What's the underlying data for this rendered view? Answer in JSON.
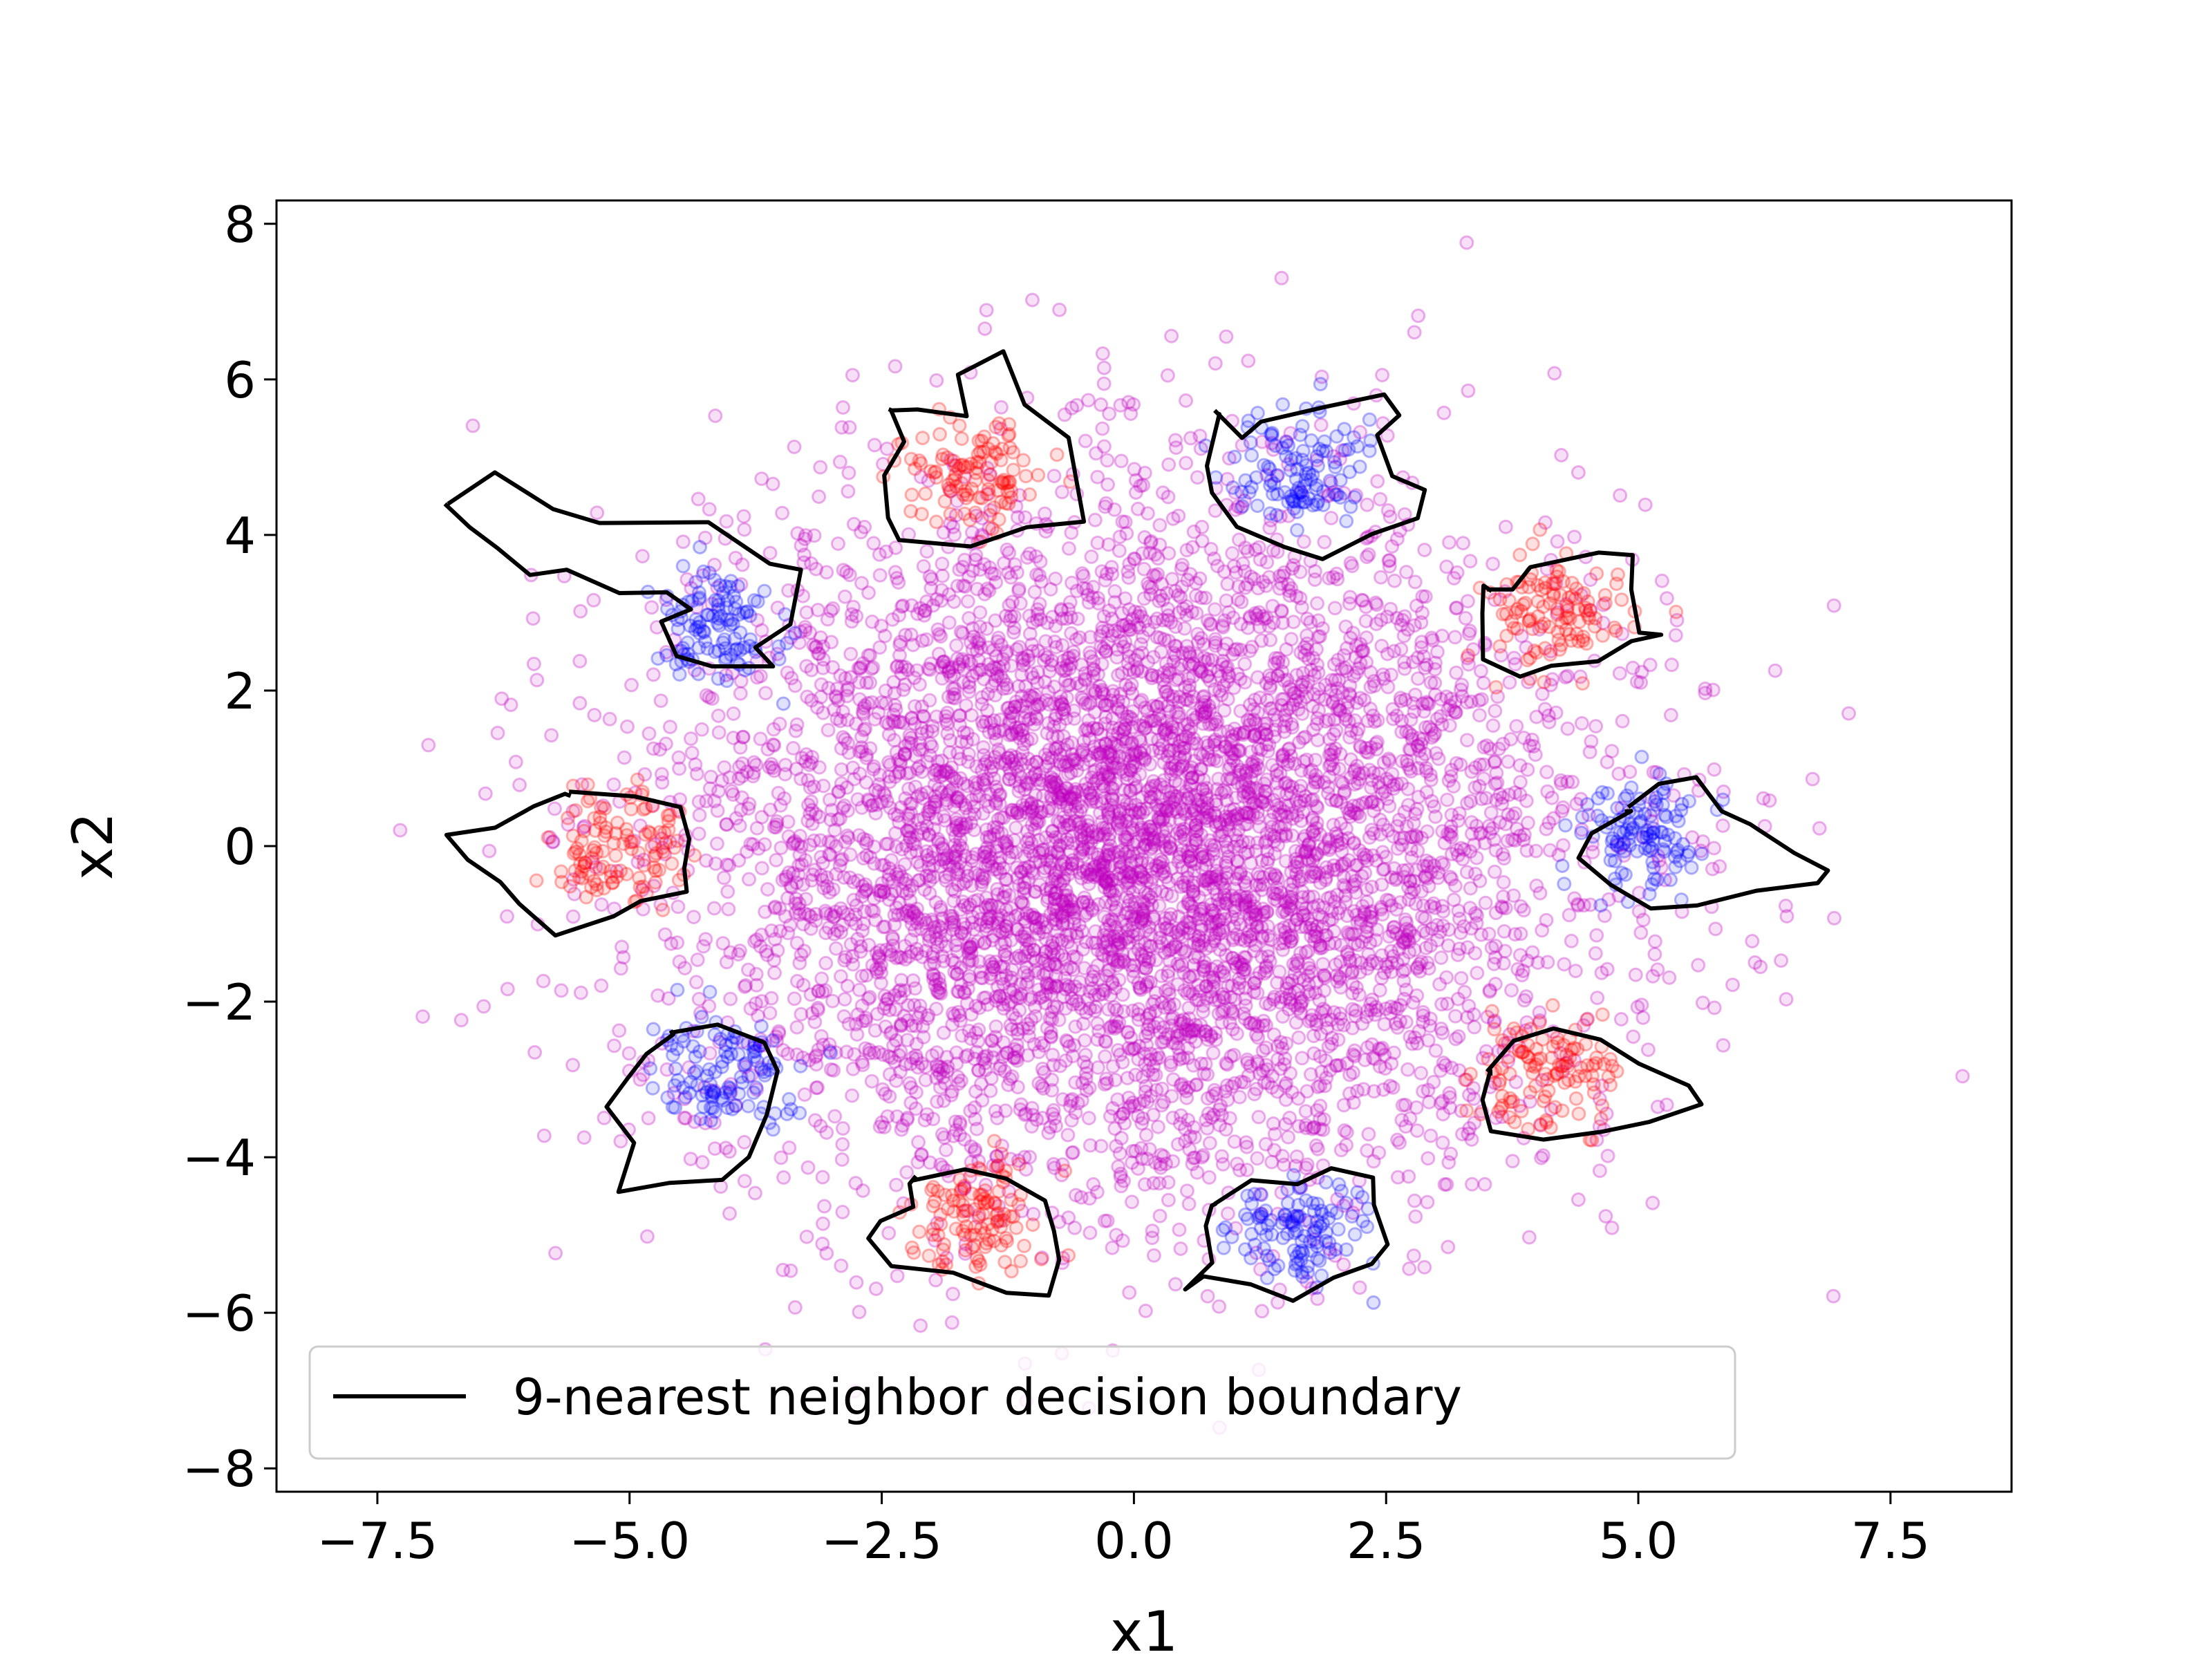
{
  "chart_data": {
    "type": "scatter",
    "title": "",
    "xlabel": "x1",
    "ylabel": "x2",
    "xlim": [
      -8.5,
      8.7
    ],
    "ylim": [
      -8.3,
      8.3
    ],
    "xticks": [
      -7.5,
      -5.0,
      -2.5,
      0.0,
      2.5,
      5.0,
      7.5
    ],
    "xtick_labels": [
      "−7.5",
      "−5.0",
      "−2.5",
      "0.0",
      "2.5",
      "5.0",
      "7.5"
    ],
    "yticks": [
      8,
      6,
      4,
      2,
      0,
      -2,
      -4,
      -6,
      -8
    ],
    "ytick_labels": [
      "8",
      "6",
      "4",
      "2",
      "0",
      "−2",
      "−4",
      "−6",
      "−8"
    ],
    "grid": false,
    "legend": {
      "placement": "lower-left",
      "entries": [
        {
          "label": "9-nearest neighbor decision boundary",
          "style": "line",
          "color": "#000000"
        }
      ]
    },
    "background_cloud": {
      "color": "#c000c0",
      "distribution": "isotropic gaussian",
      "center": [
        0,
        0
      ],
      "std": 2.2,
      "approx_points": 6000
    },
    "clusters": [
      {
        "label": "blue",
        "color": "#0000ff",
        "center": [
          -4.1,
          2.8
        ],
        "std": 0.35
      },
      {
        "label": "red",
        "color": "#ff0000",
        "center": [
          -1.6,
          4.8
        ],
        "std": 0.35
      },
      {
        "label": "blue",
        "color": "#0000ff",
        "center": [
          1.6,
          4.8
        ],
        "std": 0.35
      },
      {
        "label": "red",
        "color": "#ff0000",
        "center": [
          4.1,
          3.0
        ],
        "std": 0.35
      },
      {
        "label": "blue",
        "color": "#0000ff",
        "center": [
          5.1,
          0.1
        ],
        "std": 0.35
      },
      {
        "label": "red",
        "color": "#ff0000",
        "center": [
          4.1,
          -2.9
        ],
        "std": 0.35
      },
      {
        "label": "blue",
        "color": "#0000ff",
        "center": [
          1.6,
          -4.9
        ],
        "std": 0.35
      },
      {
        "label": "red",
        "color": "#ff0000",
        "center": [
          -1.6,
          -4.7
        ],
        "std": 0.35
      },
      {
        "label": "blue",
        "color": "#0000ff",
        "center": [
          -4.1,
          -2.9
        ],
        "std": 0.35
      },
      {
        "label": "red",
        "color": "#ff0000",
        "center": [
          -5.1,
          0.0
        ],
        "std": 0.35
      }
    ],
    "decision_boundaries": [
      {
        "cluster": 0,
        "outline": [
          [
            -6.8,
            4.4
          ],
          [
            -6.3,
            4.8
          ],
          [
            -5.8,
            4.3
          ],
          [
            -5.3,
            4.2
          ],
          [
            -4.2,
            4.2
          ],
          [
            -3.6,
            3.6
          ],
          [
            -3.3,
            3.5
          ],
          [
            -3.4,
            2.9
          ],
          [
            -3.8,
            2.6
          ],
          [
            -3.6,
            2.3
          ],
          [
            -4.2,
            2.3
          ],
          [
            -4.5,
            2.4
          ],
          [
            -4.7,
            2.9
          ],
          [
            -4.4,
            3.1
          ],
          [
            -4.6,
            3.3
          ],
          [
            -5.1,
            3.2
          ],
          [
            -5.6,
            3.5
          ],
          [
            -6.0,
            3.5
          ],
          [
            -6.3,
            3.8
          ],
          [
            -6.6,
            4.1
          ]
        ]
      },
      {
        "cluster": 1,
        "outline": [
          [
            -2.4,
            5.6
          ],
          [
            -2.1,
            5.6
          ],
          [
            -1.7,
            5.5
          ],
          [
            -1.7,
            6.1
          ],
          [
            -1.3,
            6.3
          ],
          [
            -1.1,
            5.7
          ],
          [
            -0.6,
            5.2
          ],
          [
            -0.5,
            4.2
          ],
          [
            -1.1,
            4.1
          ],
          [
            -1.6,
            3.9
          ],
          [
            -2.3,
            3.9
          ],
          [
            -2.4,
            4.2
          ],
          [
            -2.5,
            4.8
          ],
          [
            -2.3,
            5.2
          ],
          [
            -2.4,
            5.6
          ]
        ]
      },
      {
        "cluster": 2,
        "outline": [
          [
            0.8,
            5.6
          ],
          [
            1.1,
            5.2
          ],
          [
            1.3,
            5.4
          ],
          [
            1.9,
            5.7
          ],
          [
            2.5,
            5.8
          ],
          [
            2.6,
            5.5
          ],
          [
            2.4,
            5.3
          ],
          [
            2.6,
            4.8
          ],
          [
            2.9,
            4.6
          ],
          [
            2.8,
            4.2
          ],
          [
            2.4,
            4.0
          ],
          [
            1.9,
            3.7
          ],
          [
            1.5,
            3.9
          ],
          [
            1.0,
            4.1
          ],
          [
            0.8,
            4.5
          ],
          [
            0.7,
            4.9
          ],
          [
            0.8,
            5.6
          ]
        ]
      },
      {
        "cluster": 3,
        "outline": [
          [
            3.5,
            3.3
          ],
          [
            3.8,
            3.3
          ],
          [
            3.9,
            3.6
          ],
          [
            4.6,
            3.8
          ],
          [
            4.9,
            3.7
          ],
          [
            4.9,
            3.3
          ],
          [
            5.0,
            2.8
          ],
          [
            5.2,
            2.7
          ],
          [
            4.9,
            2.6
          ],
          [
            4.6,
            2.4
          ],
          [
            4.1,
            2.3
          ],
          [
            3.8,
            2.2
          ],
          [
            3.5,
            2.4
          ],
          [
            3.5,
            3.0
          ],
          [
            3.5,
            3.3
          ]
        ]
      },
      {
        "cluster": 4,
        "outline": [
          [
            4.9,
            0.5
          ],
          [
            5.2,
            0.8
          ],
          [
            5.6,
            0.9
          ],
          [
            5.8,
            0.5
          ],
          [
            6.1,
            0.3
          ],
          [
            6.5,
            -0.1
          ],
          [
            6.9,
            -0.3
          ],
          [
            6.8,
            -0.5
          ],
          [
            6.2,
            -0.6
          ],
          [
            5.6,
            -0.8
          ],
          [
            5.1,
            -0.8
          ],
          [
            4.7,
            -0.5
          ],
          [
            4.4,
            -0.1
          ],
          [
            4.5,
            0.2
          ],
          [
            4.9,
            0.5
          ]
        ]
      },
      {
        "cluster": 5,
        "outline": [
          [
            3.5,
            -2.9
          ],
          [
            3.8,
            -2.5
          ],
          [
            4.2,
            -2.3
          ],
          [
            4.6,
            -2.5
          ],
          [
            5.0,
            -2.8
          ],
          [
            5.5,
            -3.1
          ],
          [
            5.6,
            -3.3
          ],
          [
            5.1,
            -3.6
          ],
          [
            4.6,
            -3.7
          ],
          [
            4.1,
            -3.8
          ],
          [
            3.5,
            -3.7
          ],
          [
            3.5,
            -3.3
          ],
          [
            3.5,
            -2.9
          ]
        ]
      },
      {
        "cluster": 6,
        "outline": [
          [
            0.8,
            -4.6
          ],
          [
            1.2,
            -4.3
          ],
          [
            1.6,
            -4.3
          ],
          [
            2.0,
            -4.1
          ],
          [
            2.4,
            -4.2
          ],
          [
            2.4,
            -4.6
          ],
          [
            2.5,
            -5.1
          ],
          [
            2.4,
            -5.4
          ],
          [
            2.0,
            -5.5
          ],
          [
            1.6,
            -5.8
          ],
          [
            1.2,
            -5.6
          ],
          [
            0.7,
            -5.5
          ],
          [
            0.5,
            -5.7
          ],
          [
            0.8,
            -5.3
          ],
          [
            0.7,
            -4.9
          ],
          [
            0.8,
            -4.6
          ]
        ]
      },
      {
        "cluster": 7,
        "outline": [
          [
            -2.2,
            -4.3
          ],
          [
            -1.7,
            -4.1
          ],
          [
            -1.3,
            -4.3
          ],
          [
            -0.9,
            -4.5
          ],
          [
            -0.8,
            -4.9
          ],
          [
            -0.7,
            -5.3
          ],
          [
            -0.8,
            -5.8
          ],
          [
            -1.3,
            -5.7
          ],
          [
            -1.8,
            -5.5
          ],
          [
            -2.4,
            -5.4
          ],
          [
            -2.6,
            -5.1
          ],
          [
            -2.5,
            -4.8
          ],
          [
            -2.2,
            -4.6
          ],
          [
            -2.2,
            -4.3
          ]
        ]
      },
      {
        "cluster": 8,
        "outline": [
          [
            -4.6,
            -2.4
          ],
          [
            -4.1,
            -2.3
          ],
          [
            -3.7,
            -2.5
          ],
          [
            -3.5,
            -2.9
          ],
          [
            -3.6,
            -3.4
          ],
          [
            -3.8,
            -4.0
          ],
          [
            -4.1,
            -4.3
          ],
          [
            -4.6,
            -4.3
          ],
          [
            -5.1,
            -4.4
          ],
          [
            -5.0,
            -3.8
          ],
          [
            -5.2,
            -3.4
          ],
          [
            -5.0,
            -3.0
          ],
          [
            -4.8,
            -2.7
          ],
          [
            -4.6,
            -2.4
          ]
        ]
      },
      {
        "cluster": 9,
        "outline": [
          [
            -5.6,
            0.7
          ],
          [
            -5.0,
            0.7
          ],
          [
            -4.5,
            0.5
          ],
          [
            -4.4,
            0.1
          ],
          [
            -4.5,
            -0.3
          ],
          [
            -4.4,
            -0.6
          ],
          [
            -4.9,
            -0.7
          ],
          [
            -5.2,
            -0.9
          ],
          [
            -5.7,
            -1.1
          ],
          [
            -6.1,
            -0.8
          ],
          [
            -6.3,
            -0.4
          ],
          [
            -6.6,
            -0.2
          ],
          [
            -6.8,
            0.1
          ],
          [
            -6.3,
            0.2
          ],
          [
            -5.9,
            0.5
          ],
          [
            -5.6,
            0.7
          ]
        ]
      }
    ]
  }
}
